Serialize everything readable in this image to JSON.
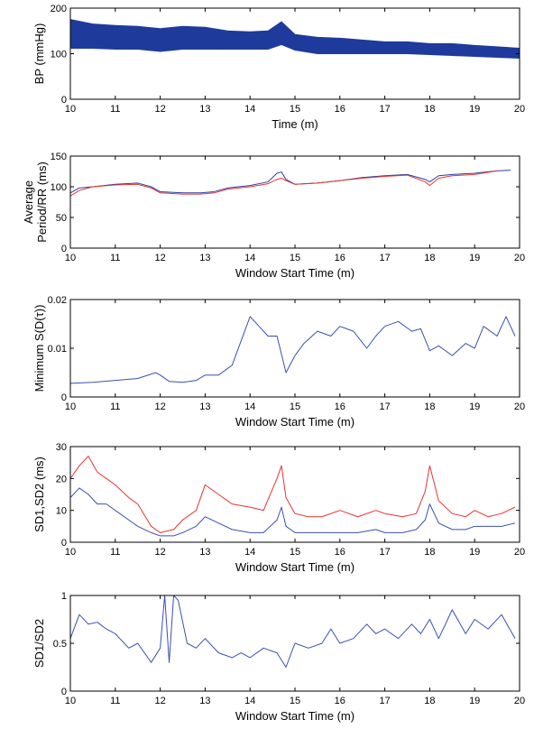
{
  "chart_data": [
    {
      "type": "line",
      "xlabel": "Time (m)",
      "ylabel": [
        "BP (mmHg)"
      ],
      "xlim": [
        10,
        20
      ],
      "ylim": [
        0,
        200
      ],
      "xticks": [
        10,
        11,
        12,
        13,
        14,
        15,
        16,
        17,
        18,
        19,
        20
      ],
      "yticks": [
        0,
        100,
        200
      ],
      "grid": false,
      "series": [
        {
          "color": "#1f3b9c",
          "style": "band",
          "x": [
            10,
            10.5,
            11,
            11.5,
            12,
            12.5,
            13,
            13.5,
            14,
            14.4,
            14.7,
            15,
            15.5,
            16,
            16.5,
            17,
            17.5,
            18,
            18.5,
            19,
            19.5,
            20
          ],
          "upper": [
            175,
            165,
            162,
            160,
            155,
            160,
            158,
            150,
            148,
            150,
            170,
            142,
            136,
            134,
            130,
            126,
            126,
            122,
            122,
            118,
            115,
            112
          ],
          "lower": [
            112,
            112,
            110,
            110,
            105,
            110,
            110,
            110,
            110,
            110,
            120,
            108,
            100,
            100,
            100,
            100,
            100,
            98,
            96,
            94,
            92,
            90
          ]
        }
      ]
    },
    {
      "type": "line",
      "xlabel": "Window Start Time (m)",
      "ylabel": [
        "Average",
        "Period/RR (ms)"
      ],
      "xlim": [
        10,
        20
      ],
      "ylim": [
        0,
        150
      ],
      "xticks": [
        10,
        11,
        12,
        13,
        14,
        15,
        16,
        17,
        18,
        19,
        20
      ],
      "yticks": [
        0,
        50,
        100,
        150
      ],
      "grid": false,
      "series": [
        {
          "color": "#2a3fa8",
          "x": [
            10,
            10.2,
            10.5,
            11,
            11.5,
            11.8,
            12,
            12.5,
            12.9,
            13.2,
            13.5,
            14,
            14.4,
            14.6,
            14.7,
            14.8,
            15,
            15.5,
            16,
            16.5,
            17,
            17.5,
            17.9,
            18,
            18.2,
            18.5,
            19,
            19.5,
            19.8
          ],
          "y": [
            90,
            98,
            100,
            104,
            106,
            100,
            92,
            90,
            90,
            92,
            98,
            102,
            108,
            122,
            124,
            112,
            104,
            106,
            110,
            115,
            118,
            120,
            112,
            108,
            118,
            120,
            122,
            126,
            127
          ]
        },
        {
          "color": "#e8332e",
          "x": [
            10,
            10.2,
            10.5,
            11,
            11.5,
            11.8,
            12,
            12.5,
            12.9,
            13.2,
            13.5,
            14,
            14.4,
            14.6,
            14.7,
            14.8,
            15,
            15.5,
            16,
            16.5,
            17,
            17.5,
            17.9,
            18,
            18.2,
            18.5,
            19,
            19.5
          ],
          "y": [
            85,
            94,
            100,
            103,
            104,
            98,
            90,
            88,
            88,
            90,
            96,
            100,
            105,
            112,
            114,
            110,
            104,
            106,
            110,
            114,
            117,
            119,
            108,
            102,
            114,
            118,
            120,
            126
          ]
        }
      ]
    },
    {
      "type": "line",
      "xlabel": "Window Start Time (m)",
      "ylabel": [
        "Minimum S(D(τ))"
      ],
      "xlim": [
        10,
        20
      ],
      "ylim": [
        0,
        0.02
      ],
      "xticks": [
        10,
        11,
        12,
        13,
        14,
        15,
        16,
        17,
        18,
        19,
        20
      ],
      "yticks": [
        0,
        0.01,
        0.02
      ],
      "grid": false,
      "series": [
        {
          "color": "#3b4fb5",
          "x": [
            10,
            10.5,
            11,
            11.5,
            11.9,
            12,
            12.2,
            12.5,
            12.8,
            13,
            13.3,
            13.6,
            13.8,
            14,
            14.2,
            14.4,
            14.6,
            14.8,
            15,
            15.2,
            15.5,
            15.8,
            16,
            16.3,
            16.6,
            16.8,
            17,
            17.3,
            17.6,
            17.8,
            18,
            18.2,
            18.5,
            18.8,
            19,
            19.2,
            19.5,
            19.7,
            19.9
          ],
          "y": [
            0.0028,
            0.003,
            0.0034,
            0.0038,
            0.005,
            0.0045,
            0.0032,
            0.003,
            0.0034,
            0.0045,
            0.0045,
            0.0065,
            0.0115,
            0.0165,
            0.0145,
            0.0125,
            0.0125,
            0.005,
            0.0085,
            0.011,
            0.0135,
            0.0125,
            0.0145,
            0.0135,
            0.01,
            0.0125,
            0.0145,
            0.0155,
            0.0135,
            0.014,
            0.0095,
            0.0105,
            0.0085,
            0.011,
            0.01,
            0.0145,
            0.0125,
            0.0165,
            0.0125
          ]
        }
      ]
    },
    {
      "type": "line",
      "xlabel": "Window Start Time (m)",
      "ylabel": [
        "SD1,SD2 (ms)"
      ],
      "xlim": [
        10,
        20
      ],
      "ylim": [
        0,
        30
      ],
      "xticks": [
        10,
        11,
        12,
        13,
        14,
        15,
        16,
        17,
        18,
        19,
        20
      ],
      "yticks": [
        0,
        10,
        20,
        30
      ],
      "grid": false,
      "series": [
        {
          "color": "#e8332e",
          "x": [
            10,
            10.2,
            10.4,
            10.6,
            10.8,
            11,
            11.3,
            11.5,
            11.8,
            12,
            12.3,
            12.5,
            12.8,
            13,
            13.3,
            13.6,
            14,
            14.3,
            14.6,
            14.7,
            14.8,
            15,
            15.3,
            15.6,
            16,
            16.4,
            16.8,
            17,
            17.4,
            17.7,
            17.9,
            18,
            18.2,
            18.5,
            18.8,
            19,
            19.3,
            19.6,
            19.9
          ],
          "y": [
            20,
            24,
            27,
            22,
            20,
            18,
            14,
            12,
            5,
            3,
            4,
            7,
            10,
            18,
            15,
            12,
            11,
            10,
            20,
            24,
            14,
            9,
            8,
            8,
            10,
            8,
            10,
            9,
            8,
            9,
            16,
            24,
            13,
            9,
            8,
            10,
            8,
            9,
            11
          ]
        },
        {
          "color": "#3b4fb5",
          "x": [
            10,
            10.2,
            10.4,
            10.6,
            10.8,
            11,
            11.3,
            11.5,
            11.8,
            12,
            12.3,
            12.5,
            12.8,
            13,
            13.3,
            13.6,
            14,
            14.3,
            14.6,
            14.7,
            14.8,
            15,
            15.3,
            15.6,
            16,
            16.4,
            16.8,
            17,
            17.4,
            17.7,
            17.9,
            18,
            18.2,
            18.5,
            18.8,
            19,
            19.3,
            19.6,
            19.9
          ],
          "y": [
            14,
            17,
            15,
            12,
            12,
            10,
            7,
            5,
            3,
            2,
            2,
            3,
            5,
            8,
            6,
            4,
            3,
            3,
            7,
            11,
            5,
            3,
            3,
            3,
            3,
            3,
            4,
            3,
            3,
            4,
            7,
            12,
            6,
            4,
            4,
            5,
            5,
            5,
            6
          ]
        }
      ]
    },
    {
      "type": "line",
      "xlabel": "Window Start Time (m)",
      "ylabel": [
        "SD1/SD2"
      ],
      "xlim": [
        10,
        20
      ],
      "ylim": [
        0,
        1
      ],
      "xticks": [
        10,
        11,
        12,
        13,
        14,
        15,
        16,
        17,
        18,
        19,
        20
      ],
      "yticks": [
        0,
        0.5,
        1
      ],
      "grid": false,
      "series": [
        {
          "color": "#3b4fb5",
          "x": [
            10,
            10.2,
            10.4,
            10.6,
            10.8,
            11,
            11.3,
            11.5,
            11.8,
            12,
            12.1,
            12.2,
            12.3,
            12.4,
            12.6,
            12.8,
            13,
            13.3,
            13.6,
            13.8,
            14,
            14.3,
            14.6,
            14.8,
            15,
            15.3,
            15.6,
            15.8,
            16,
            16.3,
            16.6,
            16.8,
            17,
            17.3,
            17.6,
            17.8,
            18,
            18.2,
            18.5,
            18.8,
            19,
            19.3,
            19.6,
            19.9
          ],
          "y": [
            0.55,
            0.8,
            0.7,
            0.72,
            0.65,
            0.6,
            0.45,
            0.5,
            0.3,
            0.45,
            1.0,
            0.3,
            1.0,
            0.95,
            0.5,
            0.45,
            0.55,
            0.4,
            0.35,
            0.4,
            0.35,
            0.45,
            0.4,
            0.25,
            0.5,
            0.45,
            0.5,
            0.65,
            0.5,
            0.55,
            0.7,
            0.6,
            0.65,
            0.55,
            0.7,
            0.6,
            0.75,
            0.55,
            0.85,
            0.6,
            0.75,
            0.65,
            0.8,
            0.55
          ]
        }
      ]
    }
  ]
}
